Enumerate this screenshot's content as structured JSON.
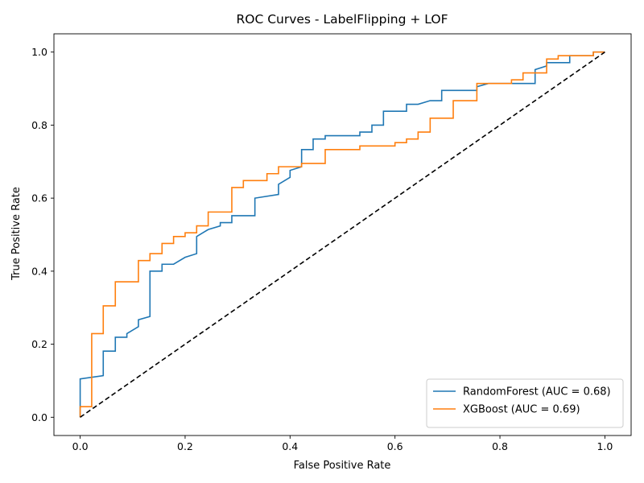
{
  "chart_data": {
    "type": "line",
    "title": "ROC Curves - LabelFlipping + LOF",
    "xlabel": "False Positive Rate",
    "ylabel": "True Positive Rate",
    "xlim": [
      -0.05,
      1.05
    ],
    "ylim": [
      -0.05,
      1.05
    ],
    "x_ticks": [
      "0.0",
      "0.2",
      "0.4",
      "0.6",
      "0.8",
      "1.0"
    ],
    "y_ticks": [
      "0.0",
      "0.2",
      "0.4",
      "0.6",
      "0.8",
      "1.0"
    ],
    "grid": false,
    "legend_position": "lower-right",
    "series": [
      {
        "name": "RandomForest (AUC = 0.68)",
        "color": "#1f77b4",
        "points": [
          [
            0,
            0
          ],
          [
            0,
            0.105
          ],
          [
            0.044,
            0.114
          ],
          [
            0.044,
            0.181
          ],
          [
            0.067,
            0.181
          ],
          [
            0.067,
            0.219
          ],
          [
            0.089,
            0.219
          ],
          [
            0.089,
            0.229
          ],
          [
            0.111,
            0.248
          ],
          [
            0.111,
            0.267
          ],
          [
            0.133,
            0.276
          ],
          [
            0.133,
            0.4
          ],
          [
            0.156,
            0.4
          ],
          [
            0.156,
            0.419
          ],
          [
            0.178,
            0.419
          ],
          [
            0.2,
            0.438
          ],
          [
            0.222,
            0.448
          ],
          [
            0.222,
            0.495
          ],
          [
            0.244,
            0.514
          ],
          [
            0.267,
            0.524
          ],
          [
            0.267,
            0.533
          ],
          [
            0.289,
            0.533
          ],
          [
            0.289,
            0.552
          ],
          [
            0.333,
            0.552
          ],
          [
            0.333,
            0.6
          ],
          [
            0.378,
            0.61
          ],
          [
            0.378,
            0.638
          ],
          [
            0.4,
            0.657
          ],
          [
            0.4,
            0.676
          ],
          [
            0.422,
            0.686
          ],
          [
            0.422,
            0.733
          ],
          [
            0.444,
            0.733
          ],
          [
            0.444,
            0.762
          ],
          [
            0.467,
            0.762
          ],
          [
            0.467,
            0.771
          ],
          [
            0.533,
            0.771
          ],
          [
            0.533,
            0.781
          ],
          [
            0.556,
            0.781
          ],
          [
            0.556,
            0.8
          ],
          [
            0.578,
            0.8
          ],
          [
            0.578,
            0.838
          ],
          [
            0.622,
            0.838
          ],
          [
            0.622,
            0.857
          ],
          [
            0.644,
            0.857
          ],
          [
            0.667,
            0.867
          ],
          [
            0.689,
            0.867
          ],
          [
            0.689,
            0.895
          ],
          [
            0.756,
            0.895
          ],
          [
            0.756,
            0.905
          ],
          [
            0.778,
            0.914
          ],
          [
            0.867,
            0.914
          ],
          [
            0.867,
            0.952
          ],
          [
            0.889,
            0.962
          ],
          [
            0.889,
            0.971
          ],
          [
            0.933,
            0.971
          ],
          [
            0.933,
            0.99
          ],
          [
            0.978,
            0.99
          ],
          [
            0.978,
            1.0
          ],
          [
            1.0,
            1.0
          ]
        ]
      },
      {
        "name": "XGBoost (AUC = 0.69)",
        "color": "#ff7f0e",
        "points": [
          [
            0,
            0
          ],
          [
            0,
            0.029
          ],
          [
            0.022,
            0.029
          ],
          [
            0.022,
            0.229
          ],
          [
            0.044,
            0.229
          ],
          [
            0.044,
            0.305
          ],
          [
            0.067,
            0.305
          ],
          [
            0.067,
            0.371
          ],
          [
            0.111,
            0.371
          ],
          [
            0.111,
            0.429
          ],
          [
            0.133,
            0.429
          ],
          [
            0.133,
            0.448
          ],
          [
            0.156,
            0.448
          ],
          [
            0.156,
            0.476
          ],
          [
            0.178,
            0.476
          ],
          [
            0.178,
            0.495
          ],
          [
            0.2,
            0.495
          ],
          [
            0.2,
            0.505
          ],
          [
            0.222,
            0.505
          ],
          [
            0.222,
            0.524
          ],
          [
            0.244,
            0.524
          ],
          [
            0.244,
            0.562
          ],
          [
            0.289,
            0.562
          ],
          [
            0.289,
            0.629
          ],
          [
            0.311,
            0.629
          ],
          [
            0.311,
            0.648
          ],
          [
            0.356,
            0.648
          ],
          [
            0.356,
            0.667
          ],
          [
            0.378,
            0.667
          ],
          [
            0.378,
            0.686
          ],
          [
            0.422,
            0.686
          ],
          [
            0.422,
            0.695
          ],
          [
            0.467,
            0.695
          ],
          [
            0.467,
            0.733
          ],
          [
            0.533,
            0.733
          ],
          [
            0.533,
            0.743
          ],
          [
            0.6,
            0.743
          ],
          [
            0.6,
            0.752
          ],
          [
            0.622,
            0.752
          ],
          [
            0.622,
            0.762
          ],
          [
            0.644,
            0.762
          ],
          [
            0.644,
            0.781
          ],
          [
            0.667,
            0.781
          ],
          [
            0.667,
            0.819
          ],
          [
            0.711,
            0.819
          ],
          [
            0.711,
            0.867
          ],
          [
            0.756,
            0.867
          ],
          [
            0.756,
            0.914
          ],
          [
            0.822,
            0.914
          ],
          [
            0.822,
            0.924
          ],
          [
            0.844,
            0.924
          ],
          [
            0.844,
            0.943
          ],
          [
            0.889,
            0.943
          ],
          [
            0.889,
            0.981
          ],
          [
            0.911,
            0.981
          ],
          [
            0.911,
            0.99
          ],
          [
            0.978,
            0.99
          ],
          [
            0.978,
            1.0
          ],
          [
            1.0,
            1.0
          ]
        ]
      },
      {
        "color": "#000000",
        "style": "dashed",
        "points": [
          [
            0,
            0
          ],
          [
            1,
            1
          ]
        ]
      }
    ]
  }
}
